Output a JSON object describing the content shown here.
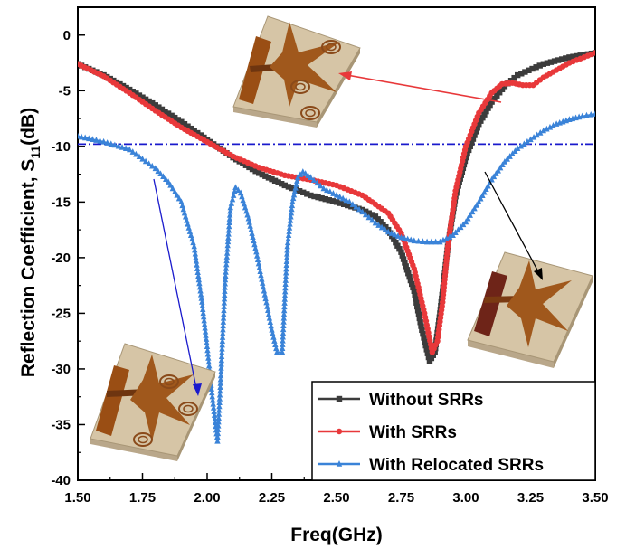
{
  "chart_data": {
    "type": "line",
    "xlabel": "Freq(GHz)",
    "ylabel_main": "Reflection Coefficient, S",
    "ylabel_sub": "11",
    "ylabel_unit": "(dB)",
    "xlim": [
      1.5,
      3.5
    ],
    "ylim": [
      -40,
      2.5
    ],
    "xticks": [
      "1.50",
      "1.75",
      "2.00",
      "2.25",
      "2.50",
      "2.75",
      "3.00",
      "3.25",
      "3.50"
    ],
    "yticks": [
      "0",
      "-5",
      "-10",
      "-15",
      "-20",
      "-25",
      "-30",
      "-35",
      "-40"
    ],
    "reference_line": {
      "y": -9.8,
      "color": "#1a1acc",
      "style": "dash-dot"
    },
    "legend_position": "bottom-right",
    "series": [
      {
        "name": "Without SRRs",
        "color": "#3c3c3c",
        "marker": "square",
        "points": [
          [
            1.5,
            -2.6
          ],
          [
            1.6,
            -3.6
          ],
          [
            1.7,
            -4.9
          ],
          [
            1.8,
            -6.3
          ],
          [
            1.9,
            -7.8
          ],
          [
            2.0,
            -9.4
          ],
          [
            2.1,
            -11.0
          ],
          [
            2.2,
            -12.4
          ],
          [
            2.3,
            -13.5
          ],
          [
            2.4,
            -14.4
          ],
          [
            2.5,
            -15.0
          ],
          [
            2.6,
            -15.7
          ],
          [
            2.65,
            -16.3
          ],
          [
            2.7,
            -17.5
          ],
          [
            2.75,
            -19.5
          ],
          [
            2.8,
            -23.0
          ],
          [
            2.83,
            -26.5
          ],
          [
            2.86,
            -29.3
          ],
          [
            2.88,
            -28.5
          ],
          [
            2.9,
            -25.0
          ],
          [
            2.93,
            -19.0
          ],
          [
            2.96,
            -14.5
          ],
          [
            3.0,
            -11.0
          ],
          [
            3.05,
            -8.0
          ],
          [
            3.1,
            -6.0
          ],
          [
            3.15,
            -4.6
          ],
          [
            3.2,
            -3.6
          ],
          [
            3.3,
            -2.6
          ],
          [
            3.4,
            -2.0
          ],
          [
            3.5,
            -1.6
          ]
        ]
      },
      {
        "name": "With SRRs",
        "color": "#e8383a",
        "marker": "circle",
        "points": [
          [
            1.5,
            -2.6
          ],
          [
            1.6,
            -3.7
          ],
          [
            1.7,
            -5.2
          ],
          [
            1.8,
            -6.8
          ],
          [
            1.9,
            -8.3
          ],
          [
            2.0,
            -9.6
          ],
          [
            2.1,
            -10.9
          ],
          [
            2.2,
            -11.9
          ],
          [
            2.3,
            -12.6
          ],
          [
            2.4,
            -13.0
          ],
          [
            2.5,
            -13.5
          ],
          [
            2.6,
            -14.4
          ],
          [
            2.7,
            -16.0
          ],
          [
            2.75,
            -17.8
          ],
          [
            2.8,
            -21.0
          ],
          [
            2.84,
            -25.0
          ],
          [
            2.87,
            -28.5
          ],
          [
            2.89,
            -27.5
          ],
          [
            2.91,
            -24.0
          ],
          [
            2.93,
            -19.0
          ],
          [
            2.96,
            -14.0
          ],
          [
            3.0,
            -10.0
          ],
          [
            3.05,
            -7.0
          ],
          [
            3.1,
            -5.2
          ],
          [
            3.14,
            -4.4
          ],
          [
            3.18,
            -4.3
          ],
          [
            3.22,
            -4.5
          ],
          [
            3.26,
            -4.5
          ],
          [
            3.3,
            -3.8
          ],
          [
            3.4,
            -2.5
          ],
          [
            3.5,
            -1.6
          ]
        ]
      },
      {
        "name": "With Relocated SRRs",
        "color": "#3a83d8",
        "marker": "triangle",
        "points": [
          [
            1.5,
            -9.1
          ],
          [
            1.6,
            -9.6
          ],
          [
            1.7,
            -10.3
          ],
          [
            1.8,
            -12.0
          ],
          [
            1.85,
            -13.2
          ],
          [
            1.9,
            -15.0
          ],
          [
            1.95,
            -19.0
          ],
          [
            1.98,
            -24.0
          ],
          [
            2.0,
            -28.0
          ],
          [
            2.02,
            -32.5
          ],
          [
            2.04,
            -36.5
          ],
          [
            2.05,
            -32.0
          ],
          [
            2.07,
            -22.0
          ],
          [
            2.09,
            -15.5
          ],
          [
            2.11,
            -13.7
          ],
          [
            2.13,
            -14.2
          ],
          [
            2.16,
            -16.5
          ],
          [
            2.19,
            -19.5
          ],
          [
            2.22,
            -23.0
          ],
          [
            2.25,
            -26.5
          ],
          [
            2.27,
            -28.5
          ],
          [
            2.29,
            -28.5
          ],
          [
            2.31,
            -19.0
          ],
          [
            2.33,
            -15.0
          ],
          [
            2.35,
            -12.8
          ],
          [
            2.37,
            -12.3
          ],
          [
            2.4,
            -12.8
          ],
          [
            2.45,
            -13.8
          ],
          [
            2.5,
            -14.4
          ],
          [
            2.55,
            -15.0
          ],
          [
            2.6,
            -15.9
          ],
          [
            2.65,
            -16.9
          ],
          [
            2.7,
            -17.7
          ],
          [
            2.75,
            -18.2
          ],
          [
            2.8,
            -18.5
          ],
          [
            2.85,
            -18.6
          ],
          [
            2.9,
            -18.6
          ],
          [
            2.95,
            -18.0
          ],
          [
            3.0,
            -16.8
          ],
          [
            3.05,
            -15.0
          ],
          [
            3.1,
            -13.0
          ],
          [
            3.15,
            -11.4
          ],
          [
            3.2,
            -10.2
          ],
          [
            3.25,
            -9.4
          ],
          [
            3.3,
            -8.6
          ],
          [
            3.35,
            -8.0
          ],
          [
            3.4,
            -7.6
          ],
          [
            3.45,
            -7.3
          ],
          [
            3.5,
            -7.1
          ]
        ]
      }
    ]
  },
  "colors": {
    "substrate": "#d6c5a6",
    "substrate_side": "#b9a78a",
    "patch": "#a0581c",
    "feed": "#7a3a12",
    "ground_block": "#6e2418",
    "ring": "#8a4a1a"
  }
}
